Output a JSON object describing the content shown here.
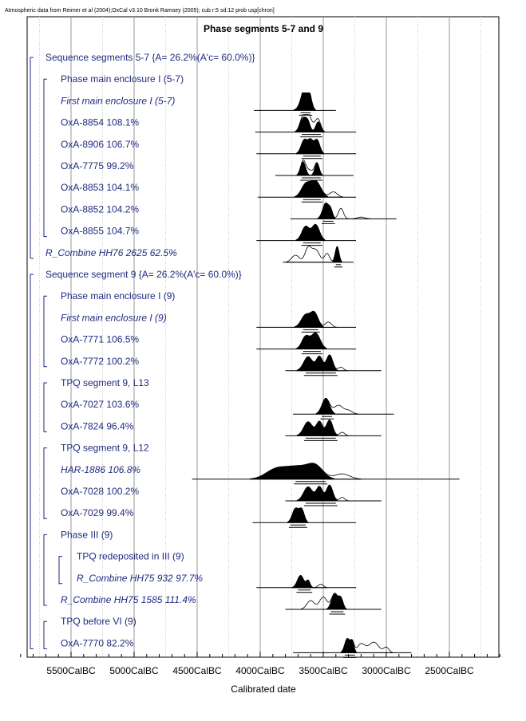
{
  "chart_data": {
    "type": "oxcal_multiplot",
    "attribution": "Atmospheric data from Reimer et al (2004);OxCal v3.10 Bronk Ramsey (2005); cub r:5 sd:12 prob usp[chron]",
    "title": "Phase segments 5-7 and 9",
    "xlabel": "Calibrated date",
    "x_axis": {
      "unit": "CalBC",
      "min": 6000,
      "max": 2000,
      "major_ticks": [
        5500,
        5000,
        4500,
        4000,
        3500,
        3000,
        2500
      ],
      "tick_labels": [
        "5500CalBC",
        "5000CalBC",
        "4500CalBC",
        "4000CalBC",
        "3500CalBC",
        "3000CalBC",
        "2500CalBC"
      ],
      "grid": true
    },
    "rows": [
      {
        "label": "Sequence segments 5-7 {A= 26.2%(A'c= 60.0%)}",
        "kind": "header",
        "level": 0,
        "italic": false
      },
      {
        "label": "Phase main enclosure I (5-7)",
        "kind": "header",
        "level": 1,
        "italic": false
      },
      {
        "label": "First main enclosure I (5-7)",
        "kind": "date",
        "level": 1,
        "italic": true,
        "range": [
          4050,
          3400
        ],
        "peaks": [
          [
            3660,
            30,
            0.5
          ],
          [
            3640,
            25,
            0.9
          ],
          [
            3610,
            20,
            0.6
          ]
        ],
        "outline": [],
        "bracket": [
          3680,
          3600
        ]
      },
      {
        "label": "OxA-8854  108.1%",
        "kind": "date",
        "level": 1,
        "italic": false,
        "range": [
          4040,
          3240
        ],
        "peaks": [
          [
            3660,
            25,
            0.8
          ],
          [
            3620,
            18,
            0.5
          ],
          [
            3540,
            20,
            0.6
          ]
        ],
        "outline": [
          [
            3600,
            40,
            0.5
          ]
        ],
        "bracket": [
          3670,
          3520
        ]
      },
      {
        "label": "OxA-8906  106.7%",
        "kind": "date",
        "level": 1,
        "italic": false,
        "range": [
          4030,
          3240
        ],
        "peaks": [
          [
            3650,
            25,
            0.8
          ],
          [
            3600,
            20,
            0.7
          ],
          [
            3550,
            22,
            0.8
          ]
        ],
        "outline": [],
        "bracket": [
          3660,
          3520
        ]
      },
      {
        "label": "OxA-7775   99.2%",
        "kind": "date",
        "level": 1,
        "italic": false,
        "range": [
          3880,
          3260
        ],
        "peaks": [
          [
            3660,
            20,
            0.8
          ],
          [
            3550,
            18,
            0.7
          ]
        ],
        "outline": [
          [
            3610,
            30,
            0.3
          ]
        ],
        "bracket": [
          3670,
          3520
        ]
      },
      {
        "label": "OxA-8853  104.1%",
        "kind": "date",
        "level": 1,
        "italic": false,
        "range": [
          4020,
          3240
        ],
        "peaks": [
          [
            3640,
            35,
            0.7
          ],
          [
            3560,
            40,
            0.9
          ]
        ],
        "outline": [
          [
            3420,
            30,
            0.3
          ]
        ],
        "bracket": [
          3660,
          3520
        ]
      },
      {
        "label": "OxA-8852  104.2%",
        "kind": "date",
        "level": 1,
        "italic": false,
        "range": [
          3760,
          2920
        ],
        "peaks": [
          [
            3480,
            25,
            0.9
          ],
          [
            3440,
            15,
            0.4
          ]
        ],
        "outline": [
          [
            3360,
            20,
            0.6
          ],
          [
            3200,
            30,
            0.1
          ]
        ],
        "bracket": [
          3500,
          3420
        ]
      },
      {
        "label": "OxA-8855  104.7%",
        "kind": "date",
        "level": 1,
        "italic": false,
        "range": [
          4030,
          3240
        ],
        "peaks": [
          [
            3640,
            30,
            0.8
          ],
          [
            3560,
            30,
            0.9
          ]
        ],
        "outline": [],
        "bracket": [
          3660,
          3520
        ]
      },
      {
        "label": "R_Combine HH76 2625   62.5%",
        "kind": "date",
        "level": 0,
        "italic": true,
        "range": [
          3820,
          3260
        ],
        "peaks": [
          [
            3390,
            15,
            0.9
          ]
        ],
        "outline": [
          [
            3720,
            30,
            0.4
          ],
          [
            3620,
            25,
            0.8
          ],
          [
            3560,
            30,
            0.7
          ],
          [
            3470,
            20,
            0.5
          ]
        ],
        "bracket": [
          3400,
          3360
        ]
      },
      {
        "label": "Sequence segment 9 {A= 26.2%(A'c= 60.0%)}",
        "kind": "header",
        "level": 0,
        "italic": false
      },
      {
        "label": "Phase main enclosure I (9)",
        "kind": "header",
        "level": 1,
        "italic": false
      },
      {
        "label": "First main enclosure I (9)",
        "kind": "date",
        "level": 1,
        "italic": true,
        "range": [
          4030,
          3240
        ],
        "peaks": [
          [
            3640,
            35,
            0.7
          ],
          [
            3570,
            30,
            0.8
          ]
        ],
        "outline": [
          [
            3460,
            25,
            0.3
          ]
        ],
        "bracket": [
          3660,
          3540
        ]
      },
      {
        "label": "OxA-7771  106.5%",
        "kind": "date",
        "level": 1,
        "italic": false,
        "range": [
          4030,
          3240
        ],
        "peaks": [
          [
            3640,
            30,
            0.7
          ],
          [
            3560,
            35,
            0.9
          ]
        ],
        "outline": [],
        "bracket": [
          3660,
          3520
        ]
      },
      {
        "label": "OxA-7772  100.2%",
        "kind": "date",
        "level": 1,
        "italic": false,
        "range": [
          3800,
          3040
        ],
        "peaks": [
          [
            3620,
            35,
            0.8
          ],
          [
            3530,
            25,
            0.8
          ],
          [
            3450,
            25,
            0.9
          ]
        ],
        "outline": [
          [
            3360,
            20,
            0.2
          ]
        ],
        "bracket": [
          3640,
          3400
        ]
      },
      {
        "label": "TPQ segment 9, L13",
        "kind": "header",
        "level": 1,
        "italic": false
      },
      {
        "label": "OxA-7027  103.6%",
        "kind": "date",
        "level": 1,
        "italic": false,
        "range": [
          3740,
          2940
        ],
        "peaks": [
          [
            3480,
            30,
            0.9
          ]
        ],
        "outline": [
          [
            3380,
            35,
            0.5
          ],
          [
            3300,
            30,
            0.2
          ]
        ],
        "bracket": [
          3510,
          3430
        ]
      },
      {
        "label": "OxA-7824   96.4%",
        "kind": "date",
        "level": 1,
        "italic": false,
        "range": [
          3800,
          3040
        ],
        "peaks": [
          [
            3620,
            35,
            0.8
          ],
          [
            3530,
            25,
            0.8
          ],
          [
            3450,
            25,
            0.9
          ]
        ],
        "outline": [
          [
            3350,
            20,
            0.2
          ]
        ],
        "bracket": [
          3640,
          3400
        ]
      },
      {
        "label": "TPQ segment 9, L12",
        "kind": "header",
        "level": 1,
        "italic": false
      },
      {
        "label": "HAR-1886  106.8%",
        "kind": "date",
        "level": 1,
        "italic": true,
        "range": [
          4540,
          2420
        ],
        "peaks": [
          [
            3880,
            80,
            0.5
          ],
          [
            3700,
            100,
            0.7
          ],
          [
            3560,
            60,
            0.6
          ]
        ],
        "outline": [
          [
            3350,
            60,
            0.3
          ]
        ],
        "bracket": [
          3720,
          3480
        ]
      },
      {
        "label": "OxA-7028  100.2%",
        "kind": "date",
        "level": 1,
        "italic": false,
        "range": [
          3800,
          3040
        ],
        "peaks": [
          [
            3620,
            35,
            0.8
          ],
          [
            3530,
            25,
            0.8
          ],
          [
            3450,
            25,
            0.9
          ]
        ],
        "outline": [
          [
            3350,
            20,
            0.2
          ]
        ],
        "bracket": [
          3640,
          3400
        ]
      },
      {
        "label": "OxA-7029   99.4%",
        "kind": "date",
        "level": 1,
        "italic": false,
        "range": [
          4060,
          3240
        ],
        "peaks": [
          [
            3720,
            25,
            0.8
          ],
          [
            3670,
            20,
            0.7
          ]
        ],
        "outline": [],
        "bracket": [
          3760,
          3640
        ]
      },
      {
        "label": "Phase  III (9)",
        "kind": "header",
        "level": 1,
        "italic": false
      },
      {
        "label": "TPQ redeposited in III (9)",
        "kind": "header",
        "level": 2,
        "italic": false
      },
      {
        "label": "R_Combine HH75 932   97.7%",
        "kind": "date",
        "level": 2,
        "italic": true,
        "range": [
          4030,
          3240
        ],
        "peaks": [
          [
            3680,
            25,
            0.7
          ],
          [
            3620,
            15,
            0.4
          ]
        ],
        "outline": [
          [
            3520,
            20,
            0.2
          ]
        ],
        "bracket": [
          3700,
          3600
        ]
      },
      {
        "label": "R_Combine HH75 1585  111.4%",
        "kind": "date",
        "level": 1,
        "italic": true,
        "range": [
          3800,
          3040
        ],
        "peaks": [
          [
            3410,
            25,
            0.9
          ],
          [
            3360,
            18,
            0.6
          ]
        ],
        "outline": [
          [
            3600,
            30,
            0.5
          ],
          [
            3500,
            30,
            0.7
          ]
        ],
        "bracket": [
          3440,
          3340
        ]
      },
      {
        "label": "TPQ before VI (9)",
        "kind": "header",
        "level": 1,
        "italic": false
      },
      {
        "label": "OxA-7770   82.2%",
        "kind": "date",
        "level": 1,
        "italic": false,
        "range": [
          3740,
          2800
        ],
        "peaks": [
          [
            3310,
            20,
            0.8
          ],
          [
            3270,
            15,
            0.6
          ]
        ],
        "outline": [
          [
            3200,
            30,
            0.5
          ],
          [
            3100,
            40,
            0.6
          ],
          [
            3000,
            20,
            0.3
          ]
        ],
        "bracket": [
          3330,
          3250
        ]
      }
    ]
  }
}
